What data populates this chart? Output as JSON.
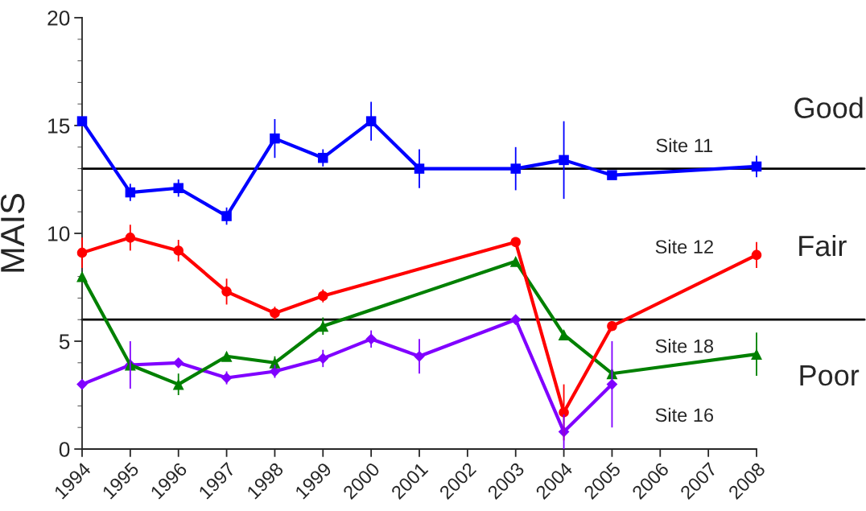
{
  "chart_data": {
    "type": "line",
    "ylabel": "MAIS",
    "xlim": [
      1994,
      2008
    ],
    "xticks": [
      1994,
      1995,
      1996,
      1997,
      1998,
      1999,
      2000,
      2001,
      2002,
      2003,
      2004,
      2005,
      2006,
      2007,
      2008
    ],
    "ylim": [
      0,
      20
    ],
    "yticks": [
      0,
      5,
      10,
      15,
      20
    ],
    "grid": false,
    "line_style": "solid",
    "series": [
      {
        "color": "#0000ff",
        "marker": "square",
        "x": [
          1994,
          1995,
          1996,
          1997,
          1998,
          1999,
          2000,
          2001,
          2003,
          2004,
          2005,
          2008
        ],
        "values": [
          15.2,
          11.9,
          12.1,
          10.8,
          14.4,
          13.5,
          15.2,
          13.0,
          13.0,
          13.4,
          12.7,
          13.1
        ],
        "errors": [
          null,
          0.4,
          0.4,
          0.4,
          0.9,
          0.4,
          0.9,
          0.9,
          1.0,
          1.8,
          0.2,
          0.5
        ]
      },
      {
        "color": "#ff0000",
        "marker": "circle",
        "x": [
          1994,
          1995,
          1996,
          1997,
          1998,
          1999,
          2003,
          2004,
          2005,
          2008
        ],
        "values": [
          9.1,
          9.8,
          9.2,
          7.3,
          6.3,
          7.1,
          9.6,
          1.7,
          5.7,
          9.0
        ],
        "errors": [
          0.7,
          0.6,
          0.5,
          0.6,
          0.3,
          0.3,
          null,
          1.3,
          null,
          0.6
        ]
      },
      {
        "color": "#008000",
        "marker": "triangle",
        "x": [
          1994,
          1995,
          1996,
          1997,
          1998,
          1999,
          2003,
          2004,
          2005,
          2008
        ],
        "values": [
          8.0,
          3.9,
          3.0,
          4.3,
          4.0,
          5.7,
          8.7,
          5.3,
          3.5,
          4.4
        ],
        "errors": [
          null,
          null,
          0.5,
          null,
          0.3,
          0.4,
          null,
          null,
          null,
          1.0
        ]
      },
      {
        "color": "#8000ff",
        "marker": "diamond",
        "x": [
          1994,
          1995,
          1996,
          1997,
          1998,
          1999,
          2000,
          2001,
          2003,
          2004,
          2005
        ],
        "values": [
          3.0,
          3.9,
          4.0,
          3.3,
          3.6,
          4.2,
          5.1,
          4.3,
          6.0,
          0.8,
          3.0
        ],
        "errors": [
          null,
          1.1,
          null,
          0.3,
          0.3,
          0.4,
          0.4,
          0.8,
          null,
          0.8,
          2.0
        ]
      }
    ],
    "ref_lines": [
      {
        "axis": "y",
        "value": 13,
        "color": "#000000"
      },
      {
        "axis": "y",
        "value": 6,
        "color": "#000000"
      }
    ],
    "annotations": [
      "Site 11",
      "Site 12",
      "Site 18",
      "Site 16",
      "Good",
      "Fair",
      "Poor"
    ]
  }
}
